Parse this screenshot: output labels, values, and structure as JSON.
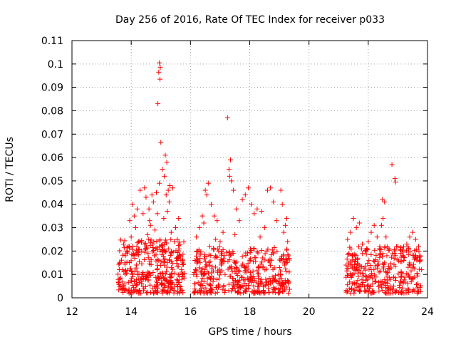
{
  "chart_data": {
    "type": "scatter",
    "title": "Day 256 of 2016, Rate Of TEC Index for receiver p033",
    "xlabel": "GPS time / hours",
    "ylabel": "ROTI / TECUs",
    "xlim": [
      12,
      24
    ],
    "ylim": [
      0,
      0.11
    ],
    "grid": true,
    "marker": "+",
    "series_color": "#ff0000",
    "x_ticks": [
      {
        "value": 12,
        "label": "12"
      },
      {
        "value": 14,
        "label": "14"
      },
      {
        "value": 16,
        "label": "16"
      },
      {
        "value": 18,
        "label": "18"
      },
      {
        "value": 20,
        "label": "20"
      },
      {
        "value": 22,
        "label": "22"
      },
      {
        "value": 24,
        "label": "24"
      }
    ],
    "y_ticks": [
      {
        "value": 0,
        "label": "0"
      },
      {
        "value": 0.01,
        "label": "0.01"
      },
      {
        "value": 0.02,
        "label": "0.02"
      },
      {
        "value": 0.03,
        "label": "0.03"
      },
      {
        "value": 0.04,
        "label": "0.04"
      },
      {
        "value": 0.05,
        "label": "0.05"
      },
      {
        "value": 0.06,
        "label": "0.06"
      },
      {
        "value": 0.07,
        "label": "0.07"
      },
      {
        "value": 0.08,
        "label": "0.08"
      },
      {
        "value": 0.09,
        "label": "0.09"
      },
      {
        "value": 0.1,
        "label": "0.1"
      },
      {
        "value": 0.11,
        "label": "0.11"
      }
    ],
    "points": [
      [
        14.95,
        0.1005
      ],
      [
        14.98,
        0.0985
      ],
      [
        14.93,
        0.0965
      ],
      [
        14.97,
        0.0935
      ],
      [
        14.9,
        0.083
      ],
      [
        15.0,
        0.0665
      ],
      [
        15.15,
        0.061
      ],
      [
        15.2,
        0.058
      ],
      [
        15.05,
        0.055
      ],
      [
        15.12,
        0.052
      ],
      [
        14.95,
        0.049
      ],
      [
        15.3,
        0.048
      ],
      [
        15.25,
        0.046
      ],
      [
        14.85,
        0.045
      ],
      [
        14.7,
        0.044
      ],
      [
        14.45,
        0.047
      ],
      [
        14.5,
        0.043
      ],
      [
        14.3,
        0.046
      ],
      [
        14.6,
        0.038
      ],
      [
        14.2,
        0.038
      ],
      [
        14.05,
        0.04
      ],
      [
        14.1,
        0.035
      ],
      [
        13.95,
        0.033
      ],
      [
        14.4,
        0.036
      ],
      [
        14.75,
        0.041
      ],
      [
        15.4,
        0.047
      ],
      [
        15.6,
        0.034
      ],
      [
        15.5,
        0.03
      ],
      [
        15.45,
        0.024
      ],
      [
        15.35,
        0.028
      ],
      [
        13.7,
        0.012
      ],
      [
        13.8,
        0.018
      ],
      [
        13.9,
        0.022
      ],
      [
        14.0,
        0.026
      ],
      [
        14.15,
        0.03
      ],
      [
        14.25,
        0.024
      ],
      [
        14.35,
        0.02
      ],
      [
        14.55,
        0.027
      ],
      [
        14.65,
        0.031
      ],
      [
        14.8,
        0.029
      ],
      [
        15.1,
        0.034
      ],
      [
        15.22,
        0.037
      ],
      [
        15.28,
        0.041
      ],
      [
        15.18,
        0.044
      ],
      [
        14.88,
        0.036
      ],
      [
        14.62,
        0.033
      ],
      [
        14.58,
        0.025
      ],
      [
        15.65,
        0.018
      ],
      [
        15.7,
        0.012
      ],
      [
        15.55,
        0.016
      ],
      [
        13.6,
        0.008
      ],
      [
        13.65,
        0.005
      ],
      [
        15.75,
        0.009
      ],
      [
        17.25,
        0.077
      ],
      [
        17.35,
        0.059
      ],
      [
        17.3,
        0.055
      ],
      [
        17.38,
        0.05
      ],
      [
        17.32,
        0.052
      ],
      [
        17.45,
        0.046
      ],
      [
        16.5,
        0.046
      ],
      [
        16.6,
        0.049
      ],
      [
        16.55,
        0.044
      ],
      [
        16.4,
        0.035
      ],
      [
        16.45,
        0.032
      ],
      [
        16.3,
        0.03
      ],
      [
        16.7,
        0.04
      ],
      [
        16.8,
        0.035
      ],
      [
        16.9,
        0.033
      ],
      [
        17.1,
        0.028
      ],
      [
        17.55,
        0.038
      ],
      [
        17.65,
        0.033
      ],
      [
        17.75,
        0.042
      ],
      [
        17.85,
        0.044
      ],
      [
        17.95,
        0.047
      ],
      [
        18.05,
        0.04
      ],
      [
        18.15,
        0.036
      ],
      [
        18.25,
        0.038
      ],
      [
        18.4,
        0.037
      ],
      [
        18.6,
        0.046
      ],
      [
        18.7,
        0.047
      ],
      [
        18.8,
        0.041
      ],
      [
        18.9,
        0.033
      ],
      [
        19.05,
        0.046
      ],
      [
        19.1,
        0.04
      ],
      [
        19.2,
        0.031
      ],
      [
        19.25,
        0.034
      ],
      [
        19.15,
        0.028
      ],
      [
        18.5,
        0.03
      ],
      [
        18.35,
        0.026
      ],
      [
        17.5,
        0.027
      ],
      [
        17.0,
        0.024
      ],
      [
        16.95,
        0.02
      ],
      [
        16.85,
        0.025
      ],
      [
        16.65,
        0.022
      ],
      [
        16.25,
        0.02
      ],
      [
        16.2,
        0.026
      ],
      [
        16.15,
        0.016
      ],
      [
        16.35,
        0.011
      ],
      [
        19.3,
        0.018
      ],
      [
        19.28,
        0.024
      ],
      [
        21.3,
        0.025
      ],
      [
        21.4,
        0.028
      ],
      [
        21.5,
        0.034
      ],
      [
        21.6,
        0.03
      ],
      [
        21.7,
        0.032
      ],
      [
        21.8,
        0.023
      ],
      [
        21.9,
        0.02
      ],
      [
        22.0,
        0.024
      ],
      [
        22.1,
        0.028
      ],
      [
        22.2,
        0.031
      ],
      [
        22.3,
        0.026
      ],
      [
        22.45,
        0.031
      ],
      [
        22.5,
        0.034
      ],
      [
        22.55,
        0.041
      ],
      [
        22.48,
        0.042
      ],
      [
        22.6,
        0.026
      ],
      [
        22.7,
        0.021
      ],
      [
        22.8,
        0.057
      ],
      [
        22.9,
        0.051
      ],
      [
        22.92,
        0.0495
      ],
      [
        23.0,
        0.022
      ],
      [
        23.1,
        0.019
      ],
      [
        23.2,
        0.016
      ],
      [
        23.3,
        0.023
      ],
      [
        23.4,
        0.026
      ],
      [
        23.5,
        0.028
      ],
      [
        23.6,
        0.025
      ],
      [
        23.7,
        0.022
      ],
      [
        23.75,
        0.018
      ],
      [
        21.35,
        0.019
      ],
      [
        21.25,
        0.014
      ],
      [
        23.8,
        0.012
      ],
      [
        23.65,
        0.002
      ]
    ],
    "dense_bands": [
      {
        "x_start": 13.55,
        "x_end": 15.8,
        "y_min": 0.002,
        "y_max": 0.025,
        "count": 360
      },
      {
        "x_start": 16.1,
        "x_end": 19.35,
        "y_min": 0.002,
        "y_max": 0.022,
        "count": 420
      },
      {
        "x_start": 21.25,
        "x_end": 23.8,
        "y_min": 0.002,
        "y_max": 0.022,
        "count": 330
      }
    ]
  }
}
